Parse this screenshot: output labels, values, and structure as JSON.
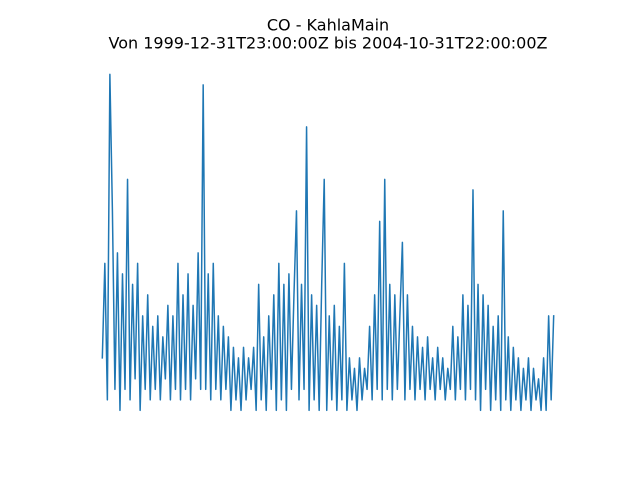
{
  "chart_data": {
    "type": "line",
    "title": "CO - KahlaMain",
    "subtitle": "Von 1999-12-31T23:00:00Z bis 2004-10-31T22:00:00Z",
    "color": "#1f77b4",
    "ylim": [
      -0.06,
      3.46
    ],
    "values": [
      0.6,
      1.5,
      0.2,
      3.3,
      2.0,
      0.3,
      1.6,
      0.1,
      1.4,
      0.3,
      2.3,
      0.2,
      1.3,
      0.4,
      1.5,
      0.1,
      1.0,
      0.3,
      1.2,
      0.2,
      0.9,
      0.3,
      1.0,
      0.2,
      0.8,
      0.4,
      1.1,
      0.2,
      1.0,
      0.3,
      1.5,
      0.2,
      1.2,
      0.3,
      1.4,
      0.2,
      1.1,
      0.4,
      1.6,
      0.3,
      3.2,
      0.3,
      1.4,
      0.2,
      1.5,
      0.3,
      1.0,
      0.2,
      0.9,
      0.3,
      0.8,
      0.1,
      0.7,
      0.2,
      0.6,
      0.1,
      0.7,
      0.2,
      0.6,
      0.3,
      0.7,
      0.1,
      1.3,
      0.2,
      0.8,
      0.1,
      1.0,
      0.3,
      1.2,
      0.1,
      1.5,
      0.2,
      1.3,
      0.1,
      1.4,
      0.3,
      1.2,
      2.0,
      0.2,
      1.3,
      0.3,
      2.8,
      0.1,
      1.2,
      0.2,
      1.1,
      0.1,
      1.3,
      2.3,
      0.1,
      1.0,
      0.2,
      1.1,
      0.1,
      0.9,
      0.2,
      1.5,
      0.1,
      0.6,
      0.2,
      0.5,
      0.1,
      0.6,
      0.2,
      0.5,
      0.3,
      0.9,
      0.2,
      1.2,
      0.3,
      1.9,
      0.2,
      2.3,
      0.3,
      1.3,
      0.2,
      1.2,
      0.3,
      1.0,
      1.7,
      0.2,
      1.2,
      0.3,
      0.9,
      0.2,
      0.8,
      0.3,
      0.7,
      0.2,
      0.8,
      0.3,
      0.6,
      0.2,
      0.7,
      0.3,
      0.6,
      0.2,
      0.5,
      0.3,
      0.9,
      0.2,
      0.8,
      0.3,
      1.2,
      0.2,
      1.1,
      0.3,
      2.2,
      0.2,
      1.3,
      0.1,
      1.2,
      0.3,
      1.1,
      0.1,
      0.9,
      0.2,
      1.0,
      0.1,
      2.0,
      0.2,
      0.8,
      0.1,
      0.7,
      0.2,
      0.6,
      0.1,
      0.5,
      0.2,
      0.6,
      0.1,
      0.5,
      0.2,
      0.4,
      0.1,
      0.6,
      0.1,
      1.0,
      0.2,
      1.0
    ]
  }
}
